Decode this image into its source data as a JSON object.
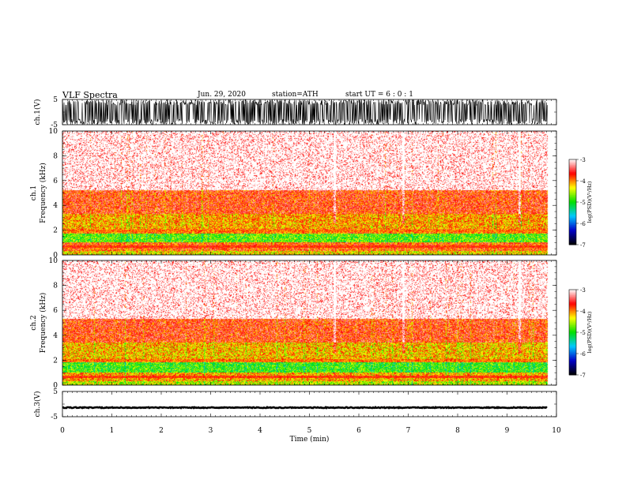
{
  "header": {
    "title": "VLF  Spectra",
    "date": "Jun. 29, 2020",
    "station": "station=ATH",
    "start": "start  UT  =   6  : 0  : 1"
  },
  "chart_data": [
    {
      "type": "line",
      "panel": "ch1-waveform",
      "ylabel": "ch.1(V)",
      "y_ticks": [
        "5",
        "-5"
      ],
      "ylim": [
        -5,
        5
      ],
      "x_range_min": [
        0,
        9.82
      ],
      "series_description": "dense noise waveform, amplitude near full range"
    },
    {
      "type": "heatmap",
      "panel": "ch1-spectrogram",
      "ylabel_line1": "ch.1",
      "ylabel_line2": "Frequency  (kHz)",
      "y_ticks": [
        "0",
        "2",
        "4",
        "6",
        "8",
        "10"
      ],
      "ylim_khz": [
        0,
        10
      ],
      "xlim_min": [
        0,
        10
      ],
      "data_end_min": 9.82,
      "bands_khz": [
        {
          "from": 0.0,
          "to": 0.3,
          "level": -4.3
        },
        {
          "from": 0.3,
          "to": 1.0,
          "level": -3.8
        },
        {
          "from": 1.0,
          "to": 1.7,
          "level": -4.8
        },
        {
          "from": 1.7,
          "to": 2.1,
          "level": -3.9
        },
        {
          "from": 2.1,
          "to": 3.3,
          "level": -4.1
        },
        {
          "from": 3.3,
          "to": 5.2,
          "level": -3.7
        },
        {
          "from": 5.2,
          "to": 10.0,
          "level": -3.2
        }
      ],
      "colorbar": {
        "label": "log(PSD)(V²/Hz)",
        "ticks": [
          "-3",
          "-4",
          "-5",
          "-6",
          "-7"
        ],
        "range": [
          -7,
          -3
        ]
      }
    },
    {
      "type": "heatmap",
      "panel": "ch2-spectrogram",
      "ylabel_line1": "ch.2",
      "ylabel_line2": "Frequency  (kHz)",
      "y_ticks": [
        "0",
        "2",
        "4",
        "6",
        "8",
        "10"
      ],
      "ylim_khz": [
        0,
        10
      ],
      "xlim_min": [
        0,
        10
      ],
      "data_end_min": 9.82,
      "bands_khz": [
        {
          "from": 0.0,
          "to": 0.3,
          "level": -4.5
        },
        {
          "from": 0.3,
          "to": 1.0,
          "level": -4.1
        },
        {
          "from": 1.0,
          "to": 1.8,
          "level": -4.9
        },
        {
          "from": 1.8,
          "to": 2.1,
          "level": -3.9
        },
        {
          "from": 2.1,
          "to": 3.4,
          "level": -4.2
        },
        {
          "from": 3.4,
          "to": 5.3,
          "level": -3.7
        },
        {
          "from": 5.3,
          "to": 10.0,
          "level": -3.2
        }
      ],
      "colorbar": {
        "label": "log(PSD)(V²/Hz)",
        "ticks": [
          "-3",
          "-4",
          "-5",
          "-6",
          "-7"
        ],
        "range": [
          -7,
          -3
        ]
      }
    },
    {
      "type": "line",
      "panel": "ch3-waveform",
      "ylabel": "ch.3(V)",
      "y_ticks": [
        "5",
        "-5"
      ],
      "ylim": [
        -5,
        5
      ],
      "x_range_min": [
        0,
        9.82
      ],
      "baseline_v": -1.4,
      "series_description": "nearly flat trace"
    },
    {
      "type": "axis",
      "panel": "time-axis",
      "xlabel": "Time  (min)",
      "x_ticks": [
        "0",
        "1",
        "2",
        "3",
        "4",
        "5",
        "6",
        "7",
        "8",
        "9",
        "10"
      ],
      "xlim_min": [
        0,
        10
      ]
    }
  ],
  "colors": {
    "waveform": "#000000",
    "colormap": [
      "#000000",
      "#0000c8",
      "#00c8ff",
      "#00e000",
      "#ffff00",
      "#ff0000",
      "#ffffff"
    ]
  }
}
